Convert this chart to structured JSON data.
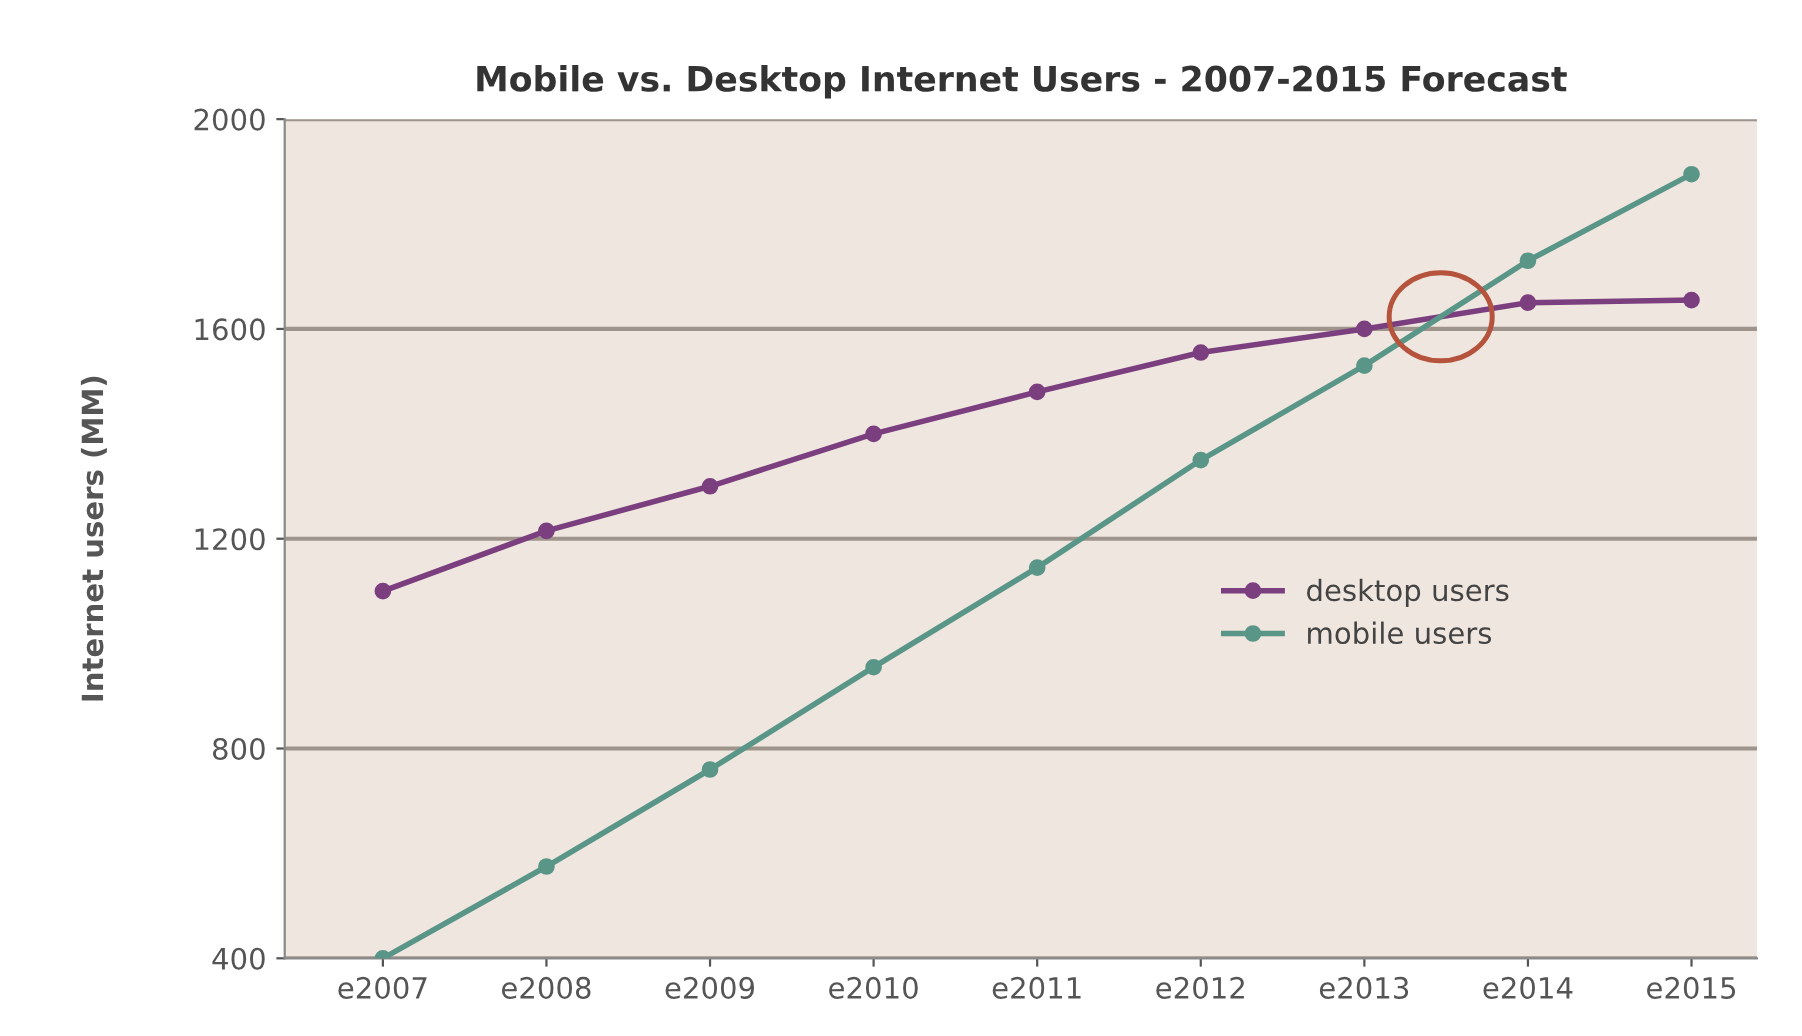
{
  "chart_data": {
    "type": "line",
    "title": "Mobile vs. Desktop Internet Users - 2007-2015 Forecast",
    "ylabel": "Internet users (MM)",
    "categories": [
      "e2007",
      "e2008",
      "e2009",
      "e2010",
      "e2011",
      "e2012",
      "e2013",
      "e2014",
      "e2015"
    ],
    "series": [
      {
        "name": "desktop users",
        "color": "#7b3f7f",
        "values": [
          1100,
          1215,
          1300,
          1400,
          1480,
          1555,
          1600,
          1650,
          1655
        ]
      },
      {
        "name": "mobile users",
        "color": "#5a9688",
        "values": [
          400,
          575,
          760,
          955,
          1145,
          1350,
          1530,
          1730,
          1895
        ]
      }
    ],
    "ylim": [
      400,
      2000
    ],
    "yticks": [
      400,
      800,
      1200,
      1600,
      2000
    ],
    "grid": "y",
    "legend": "right",
    "marker": "circle",
    "line_style": "solid"
  }
}
